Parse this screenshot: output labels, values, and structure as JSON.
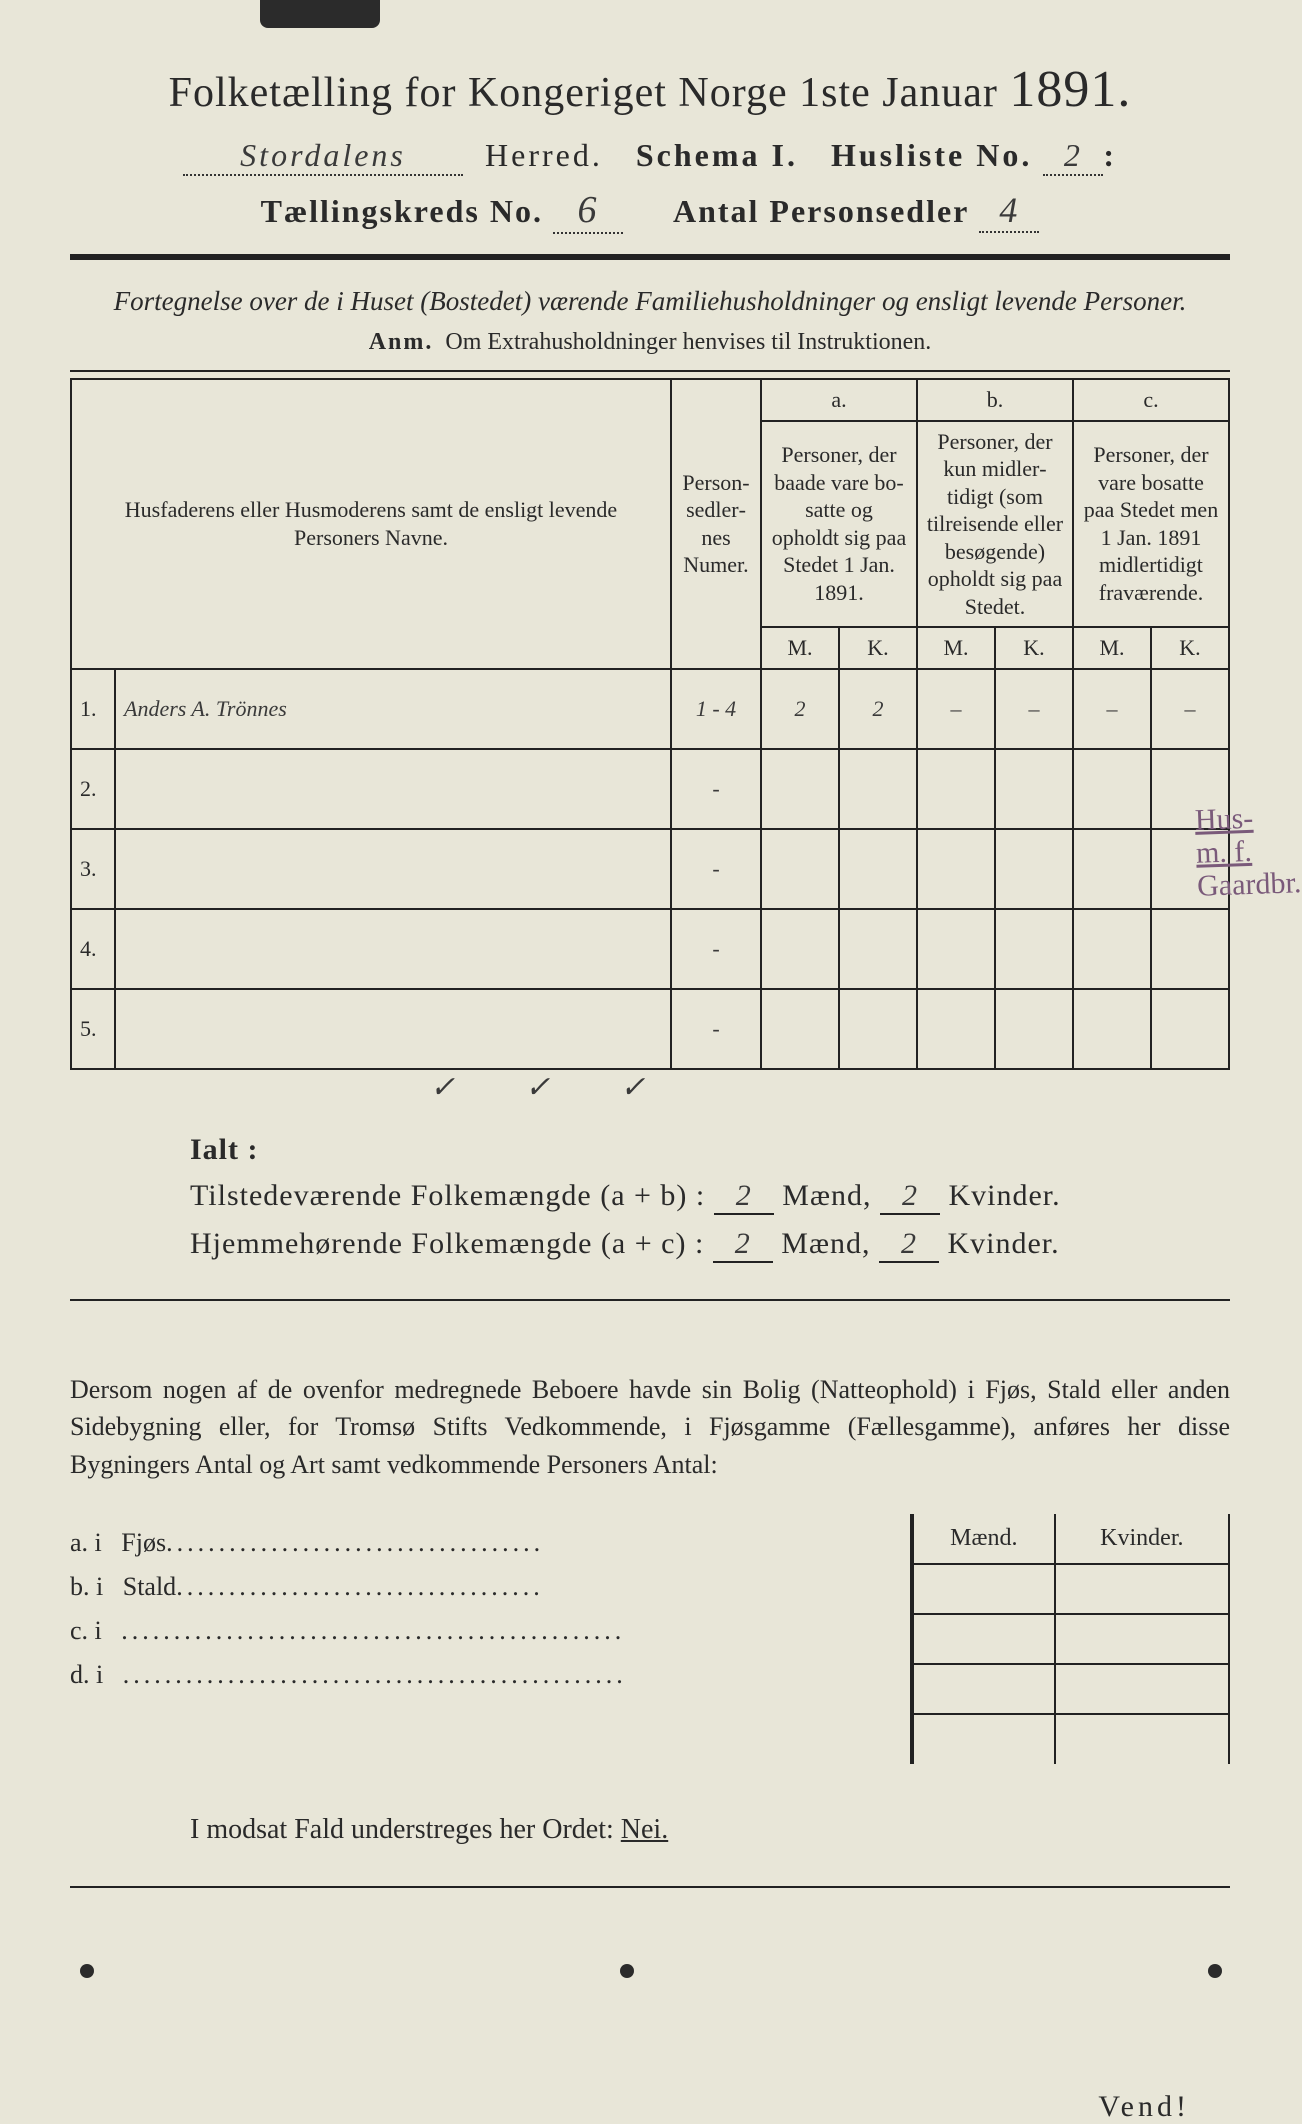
{
  "colors": {
    "paper_bg": "#e8e6d8",
    "ink": "#2a2a2a",
    "margin_note": "#7a5a7a",
    "rule": "#222222"
  },
  "title": {
    "prefix": "Folketælling for Kongeriget Norge 1ste Januar",
    "year": "1891."
  },
  "header": {
    "herred_hand": "Stordalens",
    "herred_label": "Herred.",
    "schema_label": "Schema I.",
    "husliste_label": "Husliste No.",
    "husliste_no": "2",
    "kreds_label": "Tællingskreds No.",
    "kreds_no": "6",
    "antal_label": "Antal Personsedler",
    "antal_no": "4"
  },
  "intro": {
    "line": "Fortegnelse over de i Huset (Bostedet) værende Familiehusholdninger og ensligt levende Personer.",
    "anm_label": "Anm.",
    "anm_text": "Om Extrahusholdninger henvises til Instruktionen."
  },
  "table": {
    "col_names": "Husfaderens eller Husmode­rens samt de ensligt levende Personers Navne.",
    "col_numer": "Person­sedler­nes Numer.",
    "col_a_label": "a.",
    "col_a_text": "Personer, der baade vare bo­satte og opholdt sig paa Stedet 1 Jan. 1891.",
    "col_b_label": "b.",
    "col_b_text": "Personer, der kun midler­tidigt (som tilreisende eller besøgende) opholdt sig paa Stedet.",
    "col_c_label": "c.",
    "col_c_text": "Personer, der vare bosatte paa Stedet men 1 Jan. 1891 midler­tidigt fra­værende.",
    "m": "M.",
    "k": "K.",
    "rows": [
      {
        "n": "1.",
        "name": "Anders A. Trönnes",
        "numer": "1 - 4",
        "a_m": "2",
        "a_k": "2",
        "b_m": "–",
        "b_k": "–",
        "c_m": "–",
        "c_k": "–"
      },
      {
        "n": "2.",
        "name": "",
        "numer": "-",
        "a_m": "",
        "a_k": "",
        "b_m": "",
        "b_k": "",
        "c_m": "",
        "c_k": ""
      },
      {
        "n": "3.",
        "name": "",
        "numer": "-",
        "a_m": "",
        "a_k": "",
        "b_m": "",
        "b_k": "",
        "c_m": "",
        "c_k": ""
      },
      {
        "n": "4.",
        "name": "",
        "numer": "-",
        "a_m": "",
        "a_k": "",
        "b_m": "",
        "b_k": "",
        "c_m": "",
        "c_k": ""
      },
      {
        "n": "5.",
        "name": "",
        "numer": "-",
        "a_m": "",
        "a_k": "",
        "b_m": "",
        "b_k": "",
        "c_m": "",
        "c_k": ""
      }
    ],
    "checks": {
      "a_m": "✓",
      "a_k": "✓",
      "b_m": "✓"
    }
  },
  "margin_note": {
    "line1": "Hus-",
    "line2": "m. f.",
    "line3": "Gaardbr."
  },
  "ialt": {
    "label": "Ialt :",
    "row1_label": "Tilstedeværende Folkemængde (a + b) :",
    "row2_label": "Hjemmehørende Folkemængde (a + c) :",
    "maend": "Mænd,",
    "kvinder": "Kvinder.",
    "r1_m": "2",
    "r1_k": "2",
    "r2_m": "2",
    "r2_k": "2"
  },
  "dersom": {
    "text": "Dersom nogen af de ovenfor medregnede Beboere havde sin Bolig (Natte­ophold) i Fjøs, Stald eller anden Sidebygning eller, for Tromsø Stifts Ved­kommende, i Fjøsgamme (Fællesgamme), anføres her disse Bygningers Antal og Art samt vedkommende Personers Antal:"
  },
  "side": {
    "header_m": "Mænd.",
    "header_k": "Kvinder.",
    "rows": [
      {
        "key": "a.  i",
        "label": "Fjøs",
        "dots": "...................................."
      },
      {
        "key": "b.  i",
        "label": "Stald",
        "dots": "..................................."
      },
      {
        "key": "c.  i",
        "label": "",
        "dots": "................................................"
      },
      {
        "key": "d.  i",
        "label": "",
        "dots": "................................................"
      }
    ]
  },
  "nei": {
    "text": "I modsat Fald understreges her Ordet:",
    "word": "Nei."
  },
  "vend": "Vend!"
}
